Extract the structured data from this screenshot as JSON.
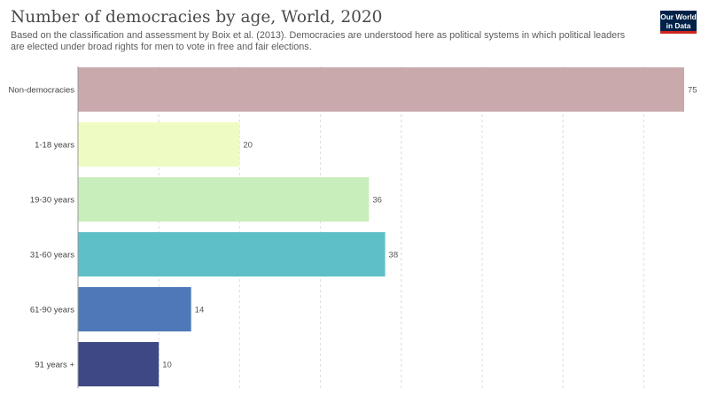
{
  "header": {
    "title": "Number of democracies by age, World, 2020",
    "subtitle": "Based on the classification and assessment by Boix et al. (2013). Democracies are understood here as political systems in which political leaders are elected under broad rights for men to vote in free and fair elections.",
    "logo_line1": "Our World",
    "logo_line2": "in Data",
    "logo_color": "#002147",
    "logo_accent": "#ce261e"
  },
  "chart_data": {
    "type": "bar",
    "orientation": "horizontal",
    "title": "Number of democracies by age, World, 2020",
    "categories": [
      "Non-democracies",
      "1-18 years",
      "19-30 years",
      "31-60 years",
      "61-90 years",
      "91 years +"
    ],
    "values": [
      75,
      20,
      36,
      38,
      14,
      10
    ],
    "colors": [
      "#c9a9ab",
      "#eefcc4",
      "#c8eebc",
      "#5dbfc7",
      "#4e78b7",
      "#3e4884"
    ],
    "xlim": [
      0,
      75
    ],
    "grid": true,
    "legend": "none"
  }
}
